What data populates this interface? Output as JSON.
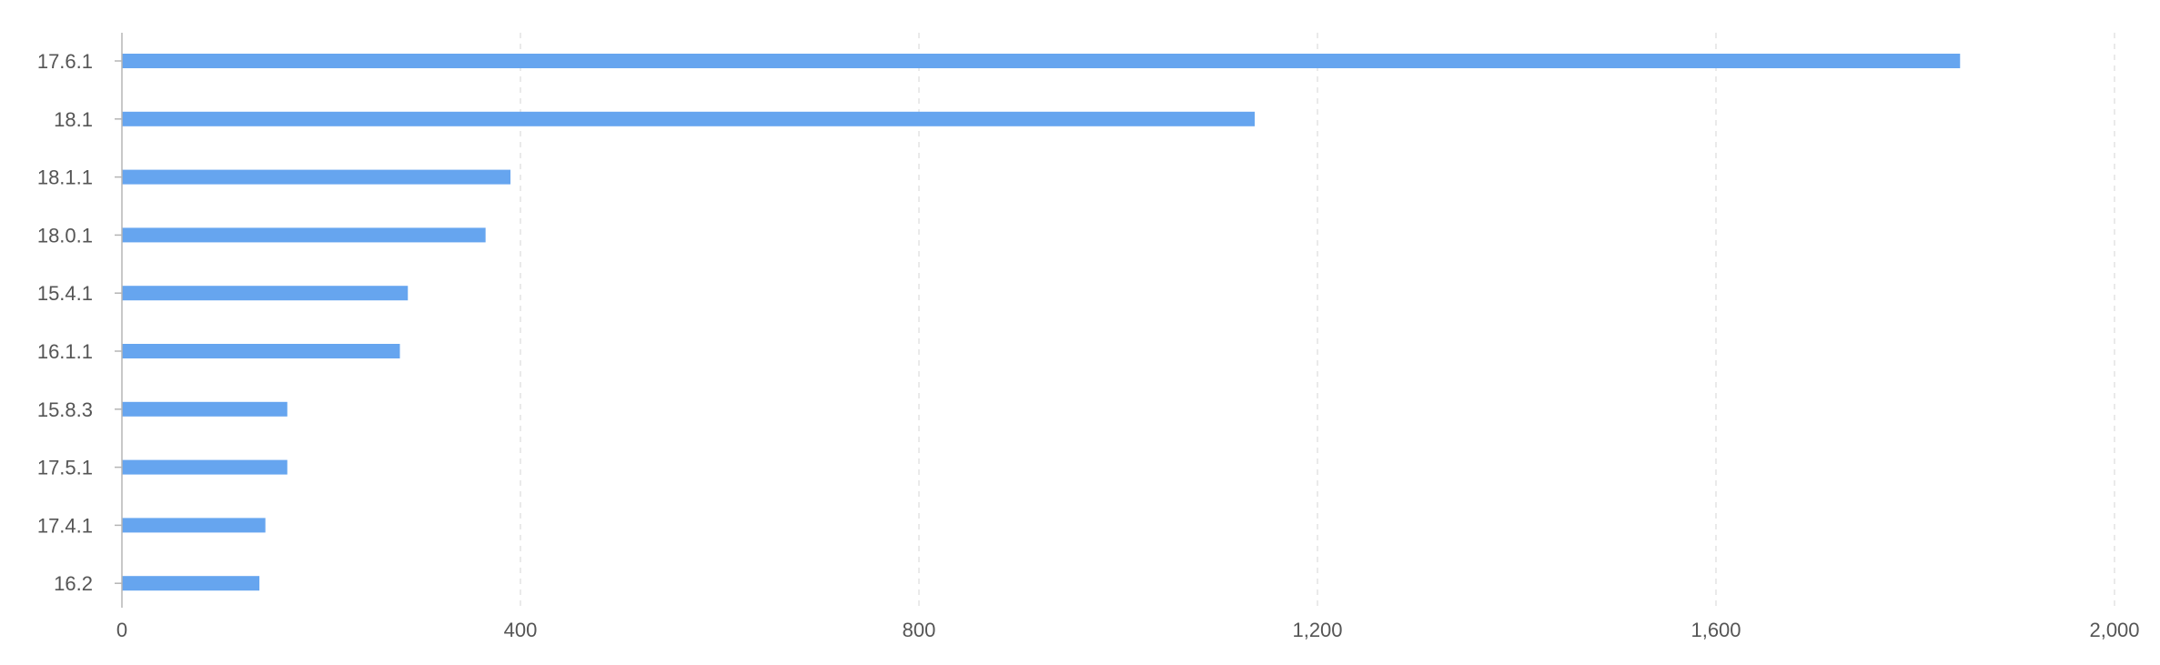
{
  "chart_data": {
    "type": "bar",
    "orientation": "horizontal",
    "title": "",
    "xlabel": "",
    "ylabel": "",
    "categories": [
      "17.6.1",
      "18.1",
      "18.1.1",
      "18.0.1",
      "15.4.1",
      "16.1.1",
      "15.8.3",
      "17.5.1",
      "17.4.1",
      "16.2"
    ],
    "values": [
      1845,
      1137,
      390,
      365,
      287,
      279,
      166,
      166,
      144,
      138
    ],
    "xlim": [
      0,
      2000
    ],
    "x_ticks": [
      0,
      400,
      800,
      1200,
      1600,
      2000
    ],
    "x_tick_labels": [
      "0",
      "400",
      "800",
      "1,200",
      "1,600",
      "2,000"
    ],
    "grid": "vertical dashed",
    "legend": "none",
    "bar_color": "#66a5ef"
  }
}
